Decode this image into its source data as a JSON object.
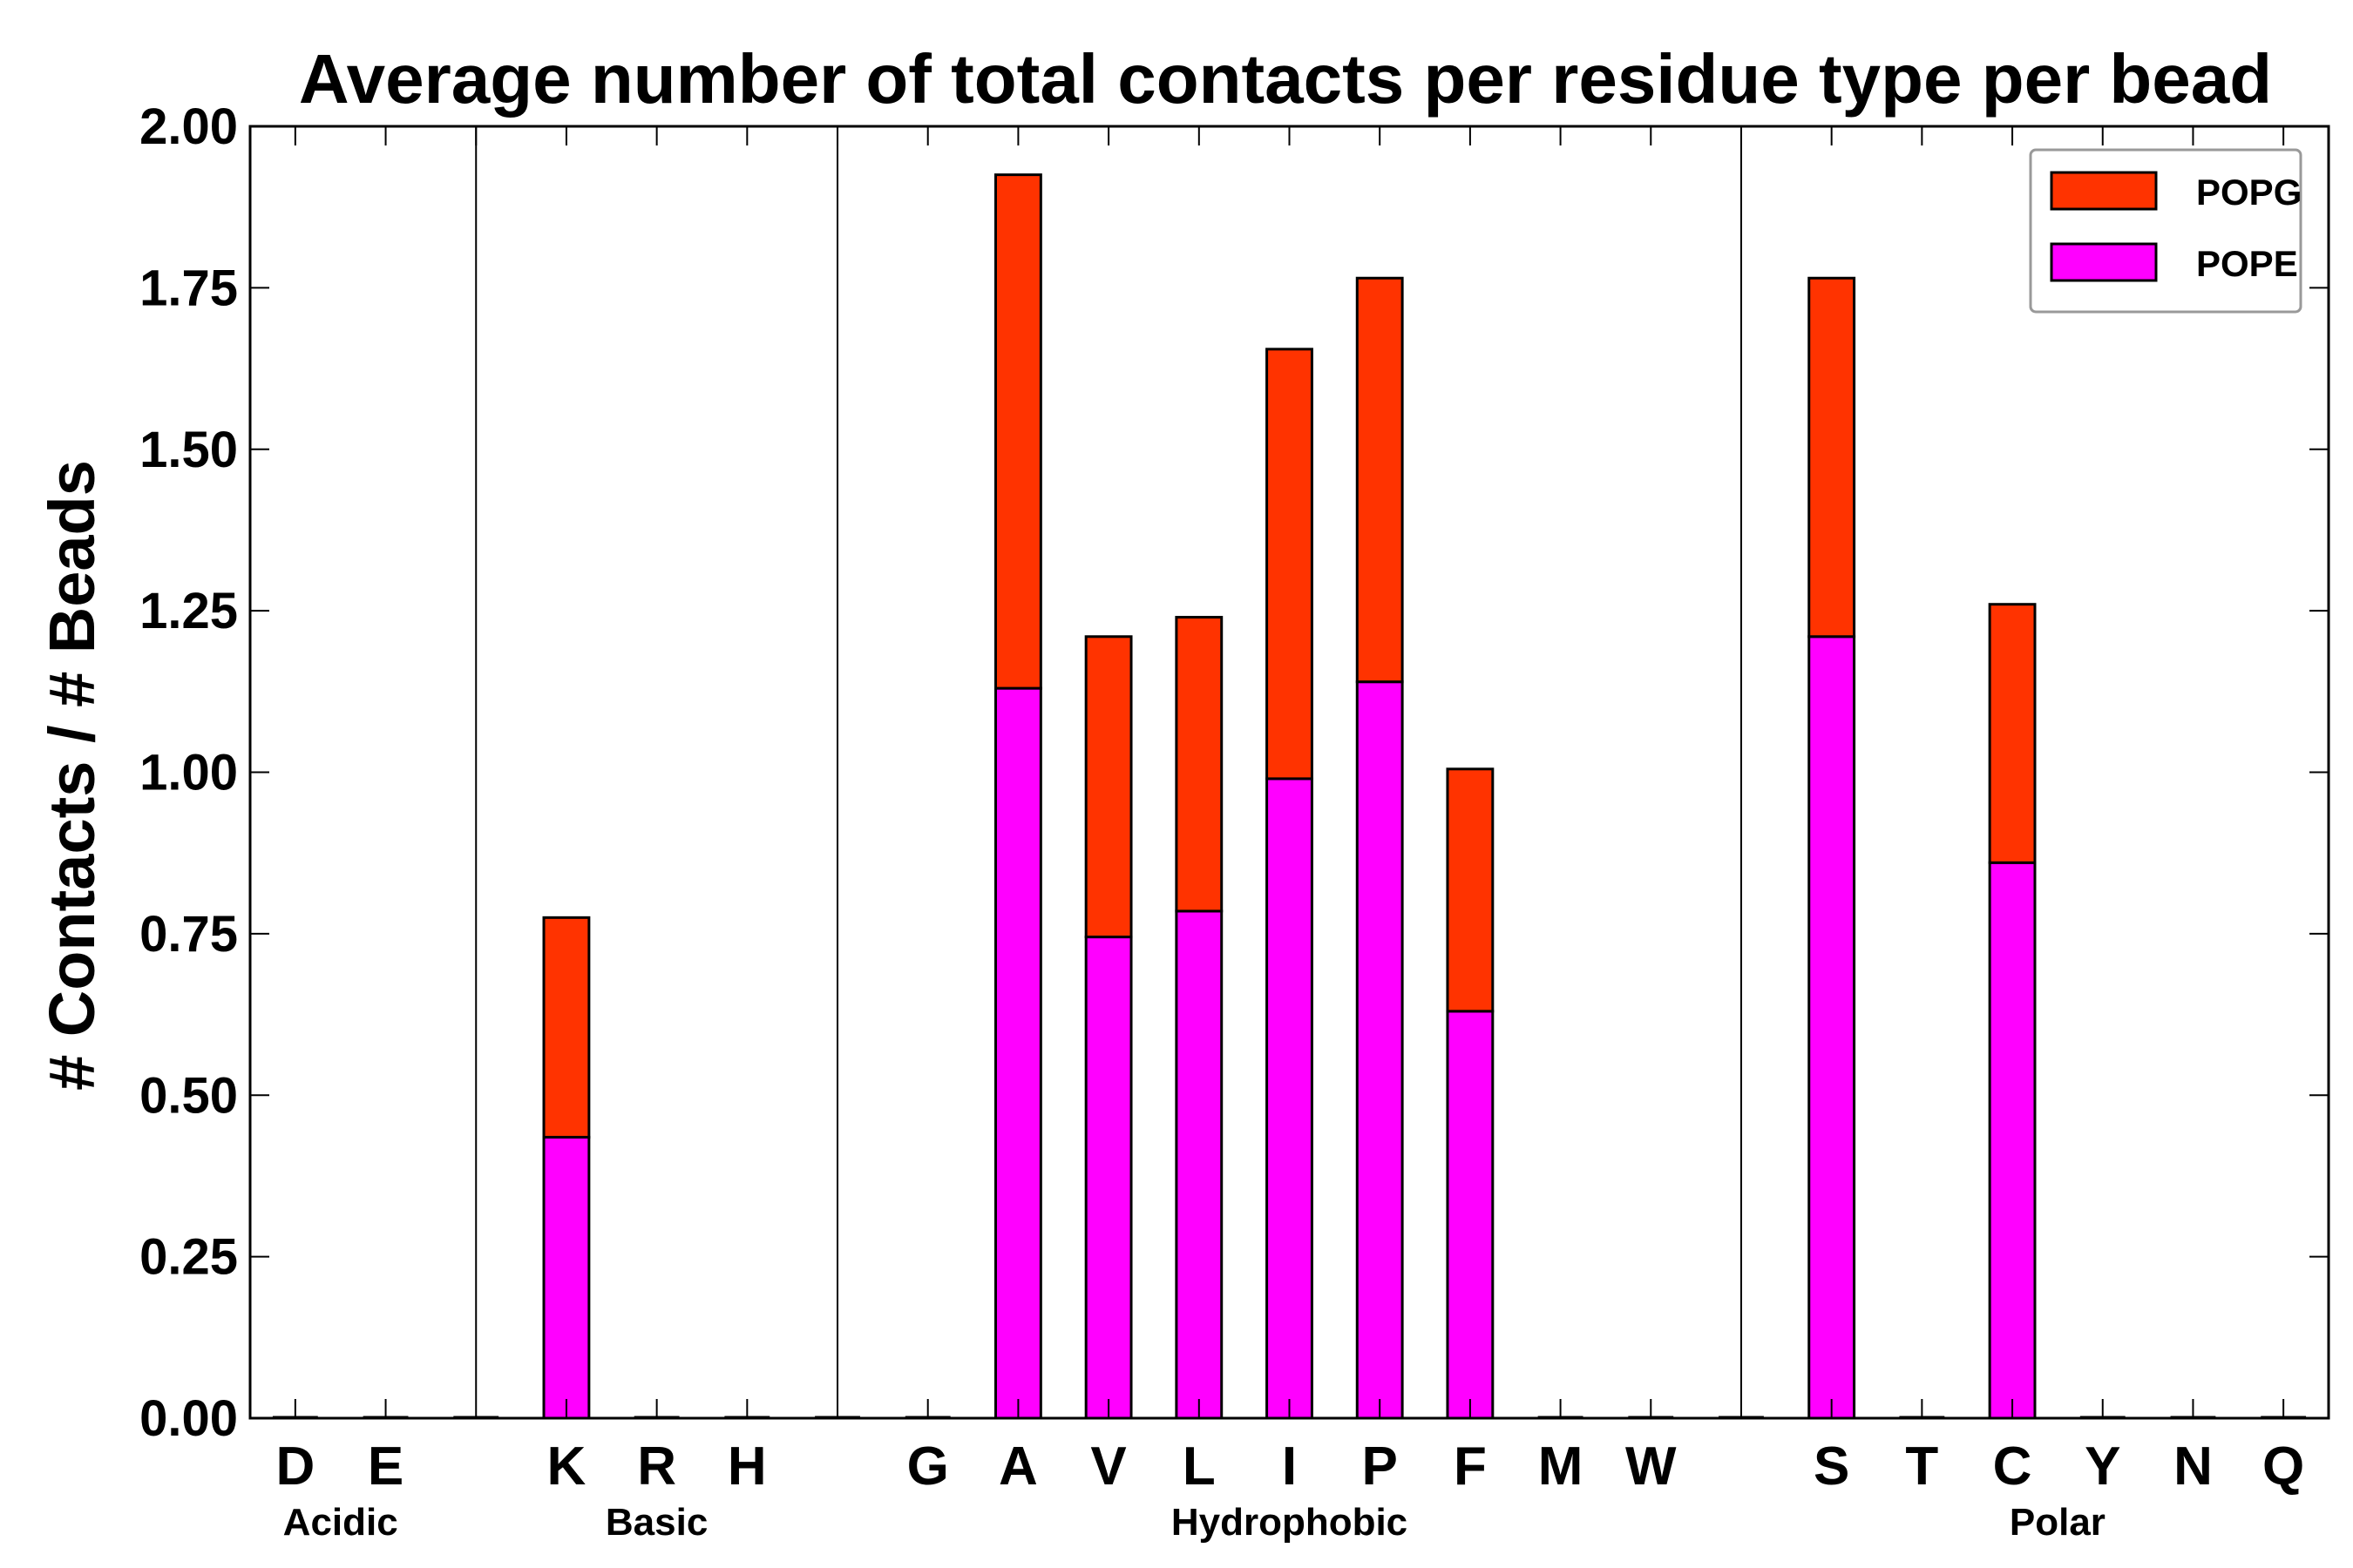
{
  "chart_data": {
    "type": "bar",
    "stacked": true,
    "title": "Average number of total contacts per residue type per bead",
    "xlabel": "",
    "ylabel": "# Contacts / # Beads",
    "ylim": [
      0,
      2.0
    ],
    "yticks": [
      "0.00",
      "0.25",
      "0.50",
      "0.75",
      "1.00",
      "1.25",
      "1.50",
      "1.75",
      "2.00"
    ],
    "categories": [
      "D",
      "E",
      "",
      "K",
      "R",
      "H",
      "",
      "G",
      "A",
      "V",
      "L",
      "I",
      "P",
      "F",
      "M",
      "W",
      "",
      "S",
      "T",
      "C",
      "Y",
      "N",
      "Q"
    ],
    "series": [
      {
        "name": "POPE",
        "color": "#ff00ff",
        "values": [
          0,
          0,
          0,
          0.435,
          0,
          0,
          0,
          0,
          1.13,
          0.745,
          0.785,
          0.99,
          1.14,
          0.63,
          0,
          0,
          0,
          1.21,
          0,
          0.86,
          0,
          0,
          0
        ]
      },
      {
        "name": "POPG",
        "color": "#ff3300",
        "values": [
          0,
          0,
          0,
          0.34,
          0,
          0,
          0,
          0,
          0.795,
          0.465,
          0.455,
          0.665,
          0.625,
          0.375,
          0,
          0,
          0,
          0.555,
          0,
          0.4,
          0,
          0,
          0
        ]
      }
    ],
    "groups": [
      {
        "label": "Acidic",
        "first": 0,
        "last": 1
      },
      {
        "label": "Basic",
        "first": 3,
        "last": 5
      },
      {
        "label": "Hydrophobic",
        "first": 7,
        "last": 15
      },
      {
        "label": "Polar",
        "first": 17,
        "last": 22
      }
    ],
    "separators_after": [
      2,
      6,
      16
    ],
    "legend": {
      "placement": "top-right",
      "order": [
        "POPG",
        "POPE"
      ]
    }
  }
}
